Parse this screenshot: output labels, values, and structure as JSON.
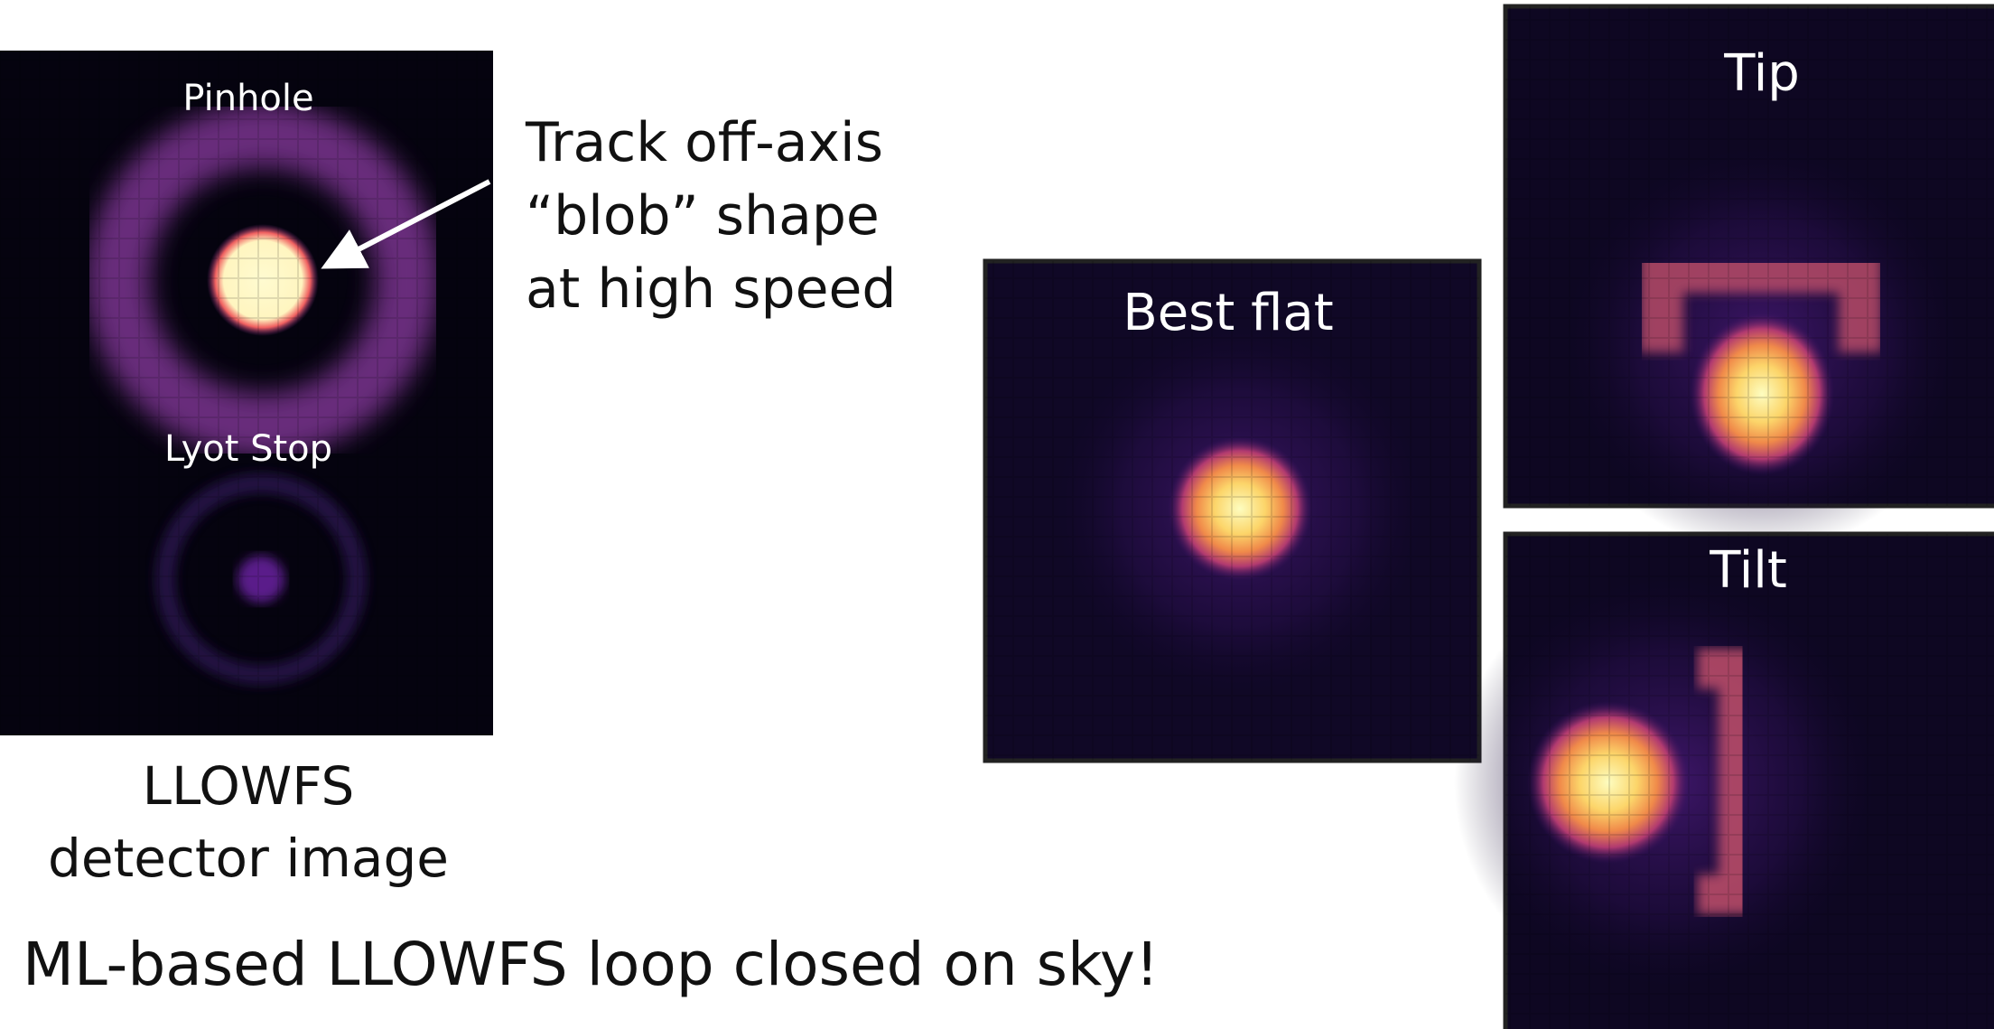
{
  "detector_panel": {
    "pinhole_label": "Pinhole",
    "lyot_label": "Lyot Stop",
    "caption_line1": "LLOWFS",
    "caption_line2": "detector image"
  },
  "annotation": {
    "line1": "Track off-axis",
    "line2": "“blob” shape",
    "line3": "at high speed"
  },
  "panels": [
    {
      "title": "Best flat"
    },
    {
      "title": "Tip"
    },
    {
      "title": "Tilt"
    }
  ],
  "footer": "ML-based LLOWFS loop closed on sky!"
}
